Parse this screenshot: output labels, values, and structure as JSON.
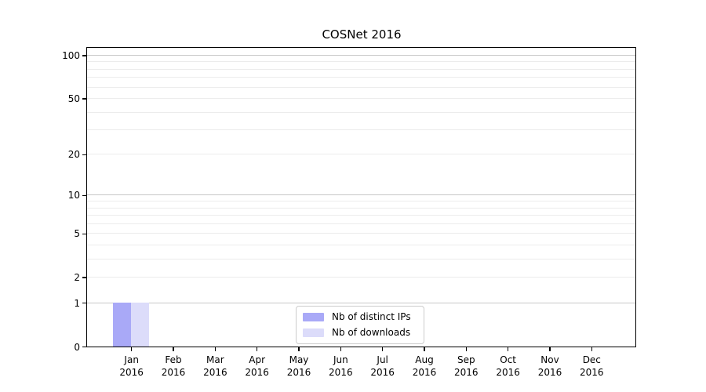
{
  "chart_data": {
    "type": "bar",
    "title": "COSNet 2016",
    "categories": [
      "Jan",
      "Feb",
      "Mar",
      "Apr",
      "May",
      "Jun",
      "Jul",
      "Aug",
      "Sep",
      "Oct",
      "Nov",
      "Dec"
    ],
    "category_year": "2016",
    "series": [
      {
        "name": "Nb of distinct IPs",
        "color": "#a9a9f7",
        "values": [
          1,
          0,
          0,
          0,
          0,
          0,
          0,
          0,
          0,
          0,
          0,
          0
        ]
      },
      {
        "name": "Nb of downloads",
        "color": "#dcdcfa",
        "values": [
          1,
          0,
          0,
          0,
          0,
          0,
          0,
          0,
          0,
          0,
          0,
          0
        ]
      }
    ],
    "yticks": [
      0,
      1,
      2,
      5,
      10,
      20,
      50,
      100
    ],
    "yscale": "log1p",
    "ylim": [
      0,
      115
    ],
    "xlabel": "",
    "ylabel": "",
    "grid": true,
    "legend_position": "lower center",
    "colors": {
      "major_grid": "#c7c7c7",
      "minor_grid": "#ececec",
      "axis": "#000000",
      "background": "#ffffff"
    }
  }
}
